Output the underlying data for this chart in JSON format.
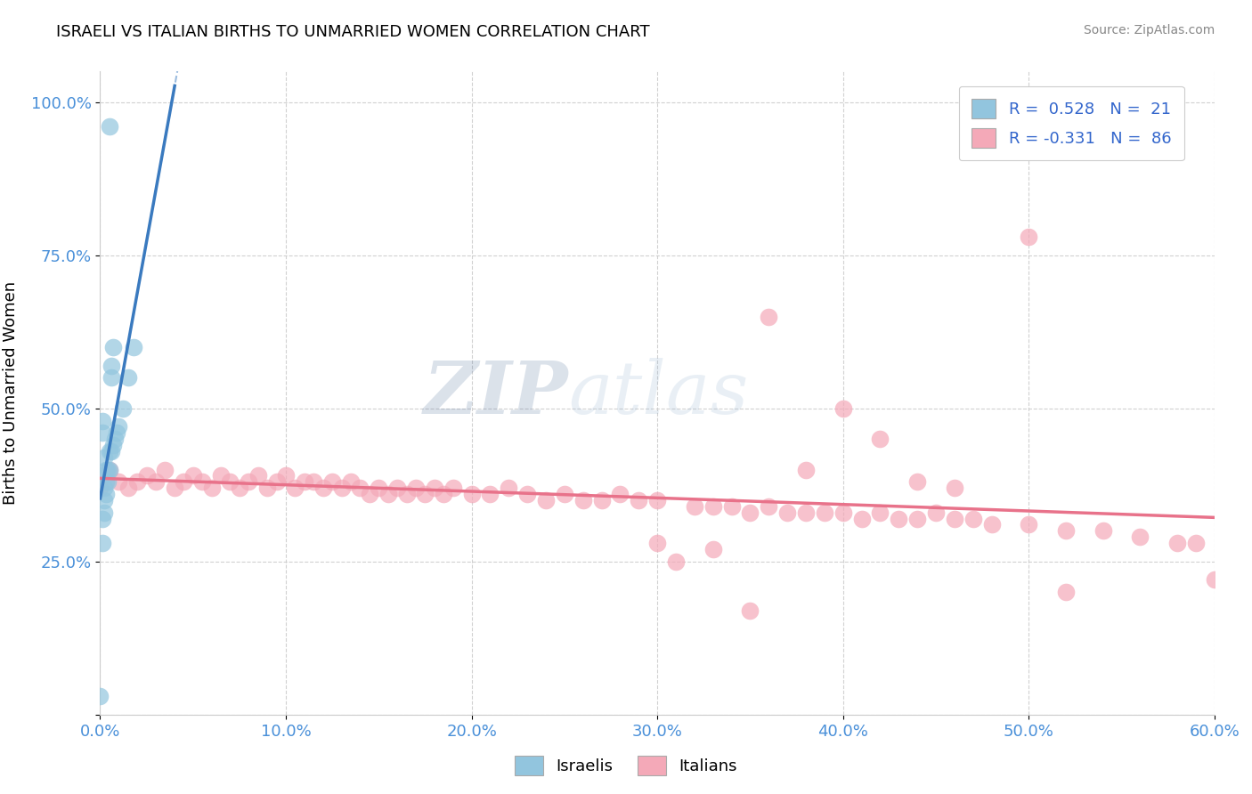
{
  "title": "ISRAELI VS ITALIAN BIRTHS TO UNMARRIED WOMEN CORRELATION CHART",
  "source": "Source: ZipAtlas.com",
  "ylabel": "Births to Unmarried Women",
  "xmin": 0.0,
  "xmax": 0.6,
  "ymin": 0.0,
  "ymax": 1.05,
  "yticks": [
    0.0,
    0.25,
    0.5,
    0.75,
    1.0
  ],
  "ytick_labels": [
    "",
    "25.0%",
    "50.0%",
    "75.0%",
    "100.0%"
  ],
  "xticks": [
    0.0,
    0.1,
    0.2,
    0.3,
    0.4,
    0.5,
    0.6
  ],
  "xtick_labels": [
    "0.0%",
    "10.0%",
    "20.0%",
    "30.0%",
    "40.0%",
    "50.0%",
    "60.0%"
  ],
  "israeli_color": "#92c5de",
  "italian_color": "#f4a9b8",
  "israeli_line_color": "#3a7abf",
  "italian_line_color": "#e8728a",
  "watermark_zip": "ZIP",
  "watermark_atlas": "atlas",
  "background_color": "#ffffff",
  "grid_color": "#cccccc",
  "israeli_x": [
    0.0,
    0.001,
    0.001,
    0.002,
    0.002,
    0.002,
    0.003,
    0.003,
    0.003,
    0.004,
    0.004,
    0.005,
    0.005,
    0.006,
    0.007,
    0.008,
    0.009,
    0.01,
    0.012,
    0.015,
    0.018,
    0.001,
    0.001,
    0.002,
    0.006,
    0.006,
    0.007,
    0.005
  ],
  "israeli_y": [
    0.03,
    0.28,
    0.32,
    0.33,
    0.35,
    0.37,
    0.36,
    0.38,
    0.4,
    0.38,
    0.4,
    0.4,
    0.43,
    0.43,
    0.44,
    0.45,
    0.46,
    0.47,
    0.5,
    0.55,
    0.6,
    0.46,
    0.48,
    0.42,
    0.55,
    0.57,
    0.6,
    0.96
  ],
  "italian_x": [
    0.0,
    0.005,
    0.01,
    0.015,
    0.02,
    0.025,
    0.03,
    0.035,
    0.04,
    0.045,
    0.05,
    0.055,
    0.06,
    0.065,
    0.07,
    0.075,
    0.08,
    0.085,
    0.09,
    0.095,
    0.1,
    0.105,
    0.11,
    0.115,
    0.12,
    0.125,
    0.13,
    0.135,
    0.14,
    0.145,
    0.15,
    0.155,
    0.16,
    0.165,
    0.17,
    0.175,
    0.18,
    0.185,
    0.19,
    0.2,
    0.21,
    0.22,
    0.23,
    0.24,
    0.25,
    0.26,
    0.27,
    0.28,
    0.29,
    0.3,
    0.32,
    0.33,
    0.34,
    0.35,
    0.36,
    0.37,
    0.38,
    0.39,
    0.4,
    0.41,
    0.42,
    0.43,
    0.44,
    0.45,
    0.46,
    0.47,
    0.48,
    0.5,
    0.52,
    0.54,
    0.56,
    0.58,
    0.59,
    0.6,
    0.36,
    0.38,
    0.4,
    0.42,
    0.44,
    0.46,
    0.3,
    0.31,
    0.33,
    0.35,
    0.5,
    0.52
  ],
  "italian_y": [
    0.37,
    0.4,
    0.38,
    0.37,
    0.38,
    0.39,
    0.38,
    0.4,
    0.37,
    0.38,
    0.39,
    0.38,
    0.37,
    0.39,
    0.38,
    0.37,
    0.38,
    0.39,
    0.37,
    0.38,
    0.39,
    0.37,
    0.38,
    0.38,
    0.37,
    0.38,
    0.37,
    0.38,
    0.37,
    0.36,
    0.37,
    0.36,
    0.37,
    0.36,
    0.37,
    0.36,
    0.37,
    0.36,
    0.37,
    0.36,
    0.36,
    0.37,
    0.36,
    0.35,
    0.36,
    0.35,
    0.35,
    0.36,
    0.35,
    0.35,
    0.34,
    0.34,
    0.34,
    0.33,
    0.34,
    0.33,
    0.33,
    0.33,
    0.33,
    0.32,
    0.33,
    0.32,
    0.32,
    0.33,
    0.32,
    0.32,
    0.31,
    0.31,
    0.3,
    0.3,
    0.29,
    0.28,
    0.28,
    0.22,
    0.65,
    0.4,
    0.5,
    0.45,
    0.38,
    0.37,
    0.28,
    0.25,
    0.27,
    0.17,
    0.78,
    0.2
  ]
}
